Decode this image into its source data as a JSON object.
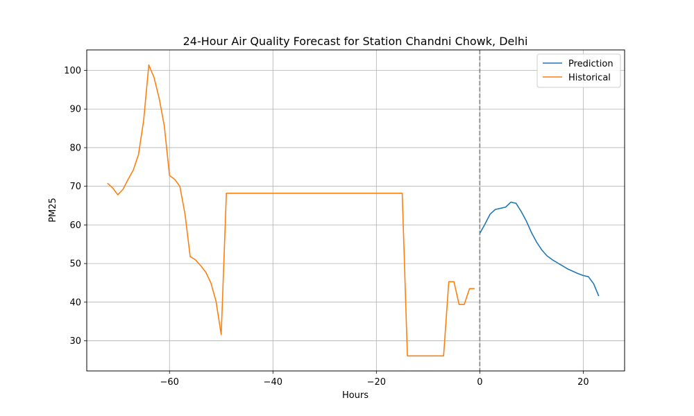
{
  "chart_data": {
    "type": "line",
    "title": "24-Hour Air Quality Forecast for Station Chandni Chowk, Delhi",
    "xlabel": "Hours",
    "ylabel": "PM25",
    "xlim": [
      -76,
      28
    ],
    "ylim": [
      22.2,
      105.3
    ],
    "xticks": [
      -60,
      -40,
      -20,
      0,
      20
    ],
    "xtick_labels": [
      "−60",
      "−40",
      "−20",
      "0",
      "20"
    ],
    "yticks": [
      30,
      40,
      50,
      60,
      70,
      80,
      90,
      100
    ],
    "ytick_labels": [
      "30",
      "40",
      "50",
      "60",
      "70",
      "80",
      "90",
      "100"
    ],
    "grid": true,
    "legend_position": "top-right",
    "vline": {
      "x": 0,
      "style": "dashed",
      "color": "#808080"
    },
    "series": [
      {
        "name": "Prediction",
        "color": "#1f77b4",
        "x": [
          0,
          1,
          2,
          3,
          4,
          5,
          6,
          7,
          8,
          9,
          10,
          11,
          12,
          13,
          14,
          15,
          16,
          17,
          18,
          19,
          20,
          21,
          22,
          23
        ],
        "y": [
          57.8,
          60.2,
          62.8,
          64.0,
          64.3,
          64.6,
          65.9,
          65.6,
          63.5,
          61.0,
          58.0,
          55.5,
          53.5,
          52.0,
          51.0,
          50.2,
          49.4,
          48.6,
          48.0,
          47.4,
          46.9,
          46.6,
          44.8,
          41.6
        ]
      },
      {
        "name": "Historical",
        "color": "#ff7f0e",
        "x": [
          -72,
          -71,
          -70,
          -69,
          -68,
          -67,
          -66,
          -65,
          -64,
          -63,
          -62,
          -61,
          -60,
          -59,
          -58,
          -57,
          -56,
          -55,
          -54,
          -53,
          -52,
          -51,
          -50,
          -49,
          -15,
          -14,
          -7,
          -6,
          -5,
          -4,
          -3,
          -2,
          -1
        ],
        "y": [
          70.8,
          69.6,
          67.8,
          69.2,
          71.8,
          74.2,
          78.2,
          87.0,
          101.4,
          98.2,
          92.8,
          85.6,
          72.8,
          71.8,
          70.0,
          62.8,
          51.8,
          51.0,
          49.5,
          47.8,
          45.0,
          40.2,
          31.6,
          68.2,
          68.2,
          26.1,
          26.1,
          45.3,
          45.3,
          39.4,
          39.4,
          43.5,
          43.5
        ]
      }
    ]
  }
}
